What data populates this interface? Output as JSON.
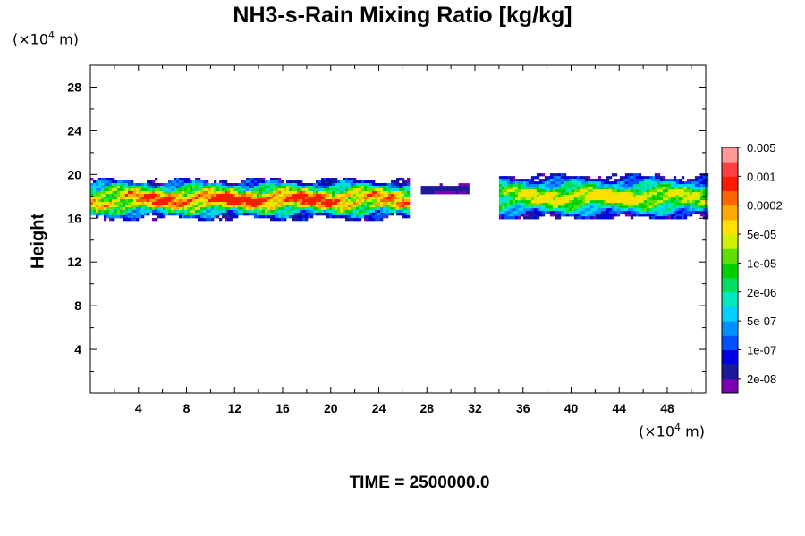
{
  "chart_data": {
    "type": "heatmap",
    "title": "NH3-s-Rain Mixing Ratio [kg/kg]",
    "ylabel": "Height",
    "x_unit_prefix": "(×10",
    "x_unit_exp": "4",
    "x_unit_suffix": " m)",
    "y_unit_prefix": "(×10",
    "y_unit_exp": "4",
    "y_unit_suffix": " m)",
    "footer": "TIME = 2500000.0",
    "xlim": [
      0,
      51.2
    ],
    "ylim": [
      0,
      30
    ],
    "x_ticks": [
      "4",
      "8",
      "12",
      "16",
      "20",
      "24",
      "28",
      "32",
      "36",
      "40",
      "44",
      "48"
    ],
    "y_ticks": [
      "4",
      "8",
      "12",
      "16",
      "20",
      "24",
      "28"
    ],
    "colorbar": {
      "colors": [
        "#7b00b4",
        "#1a1a9a",
        "#0000e6",
        "#0050ff",
        "#0090ff",
        "#00cfff",
        "#00e8c0",
        "#00e060",
        "#00d000",
        "#60e000",
        "#d0f000",
        "#ffe000",
        "#ffaa00",
        "#ff6600",
        "#ff1a00",
        "#ff4040",
        "#ff9999"
      ],
      "labels": [
        "2e-08",
        "1e-07",
        "5e-07",
        "2e-06",
        "1e-05",
        "5e-05",
        "0.0002",
        "0.001",
        "0.005"
      ]
    },
    "field_regions": [
      {
        "x": [
          0,
          26.5
        ],
        "y": [
          16,
          19.7
        ],
        "peak_level": 14
      },
      {
        "x": [
          27.5,
          31.5
        ],
        "y": [
          18.3,
          19.2
        ],
        "peak_level": 1
      },
      {
        "x": [
          34,
          51.2
        ],
        "y": [
          16,
          20.1
        ],
        "peak_level": 11
      }
    ]
  }
}
